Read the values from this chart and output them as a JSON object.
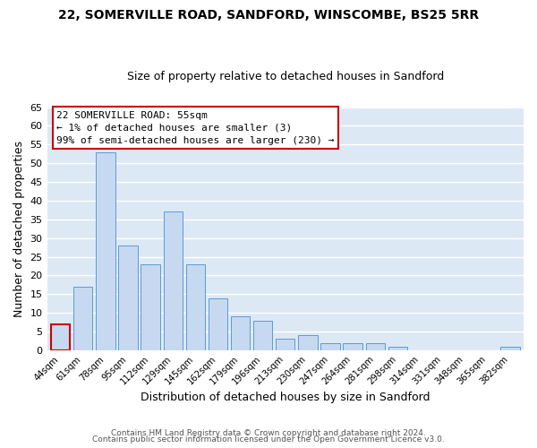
{
  "title1": "22, SOMERVILLE ROAD, SANDFORD, WINSCOMBE, BS25 5RR",
  "title2": "Size of property relative to detached houses in Sandford",
  "xlabel": "Distribution of detached houses by size in Sandford",
  "ylabel": "Number of detached properties",
  "categories": [
    "44sqm",
    "61sqm",
    "78sqm",
    "95sqm",
    "112sqm",
    "129sqm",
    "145sqm",
    "162sqm",
    "179sqm",
    "196sqm",
    "213sqm",
    "230sqm",
    "247sqm",
    "264sqm",
    "281sqm",
    "298sqm",
    "314sqm",
    "331sqm",
    "348sqm",
    "365sqm",
    "382sqm"
  ],
  "values": [
    7,
    17,
    53,
    28,
    23,
    37,
    23,
    14,
    9,
    8,
    3,
    4,
    2,
    2,
    2,
    1,
    0,
    0,
    0,
    0,
    1
  ],
  "bar_color": "#c6d9f0",
  "highlight_edge_color": "#cc0000",
  "normal_edge_color": "#5b9bd5",
  "highlight_index": 0,
  "ylim": [
    0,
    65
  ],
  "yticks": [
    0,
    5,
    10,
    15,
    20,
    25,
    30,
    35,
    40,
    45,
    50,
    55,
    60,
    65
  ],
  "annotation_title": "22 SOMERVILLE ROAD: 55sqm",
  "annotation_line1": "← 1% of detached houses are smaller (3)",
  "annotation_line2": "99% of semi-detached houses are larger (230) →",
  "footer1": "Contains HM Land Registry data © Crown copyright and database right 2024.",
  "footer2": "Contains public sector information licensed under the Open Government Licence v3.0.",
  "background_color": "#ffffff",
  "ax_background_color": "#dce9f5"
}
